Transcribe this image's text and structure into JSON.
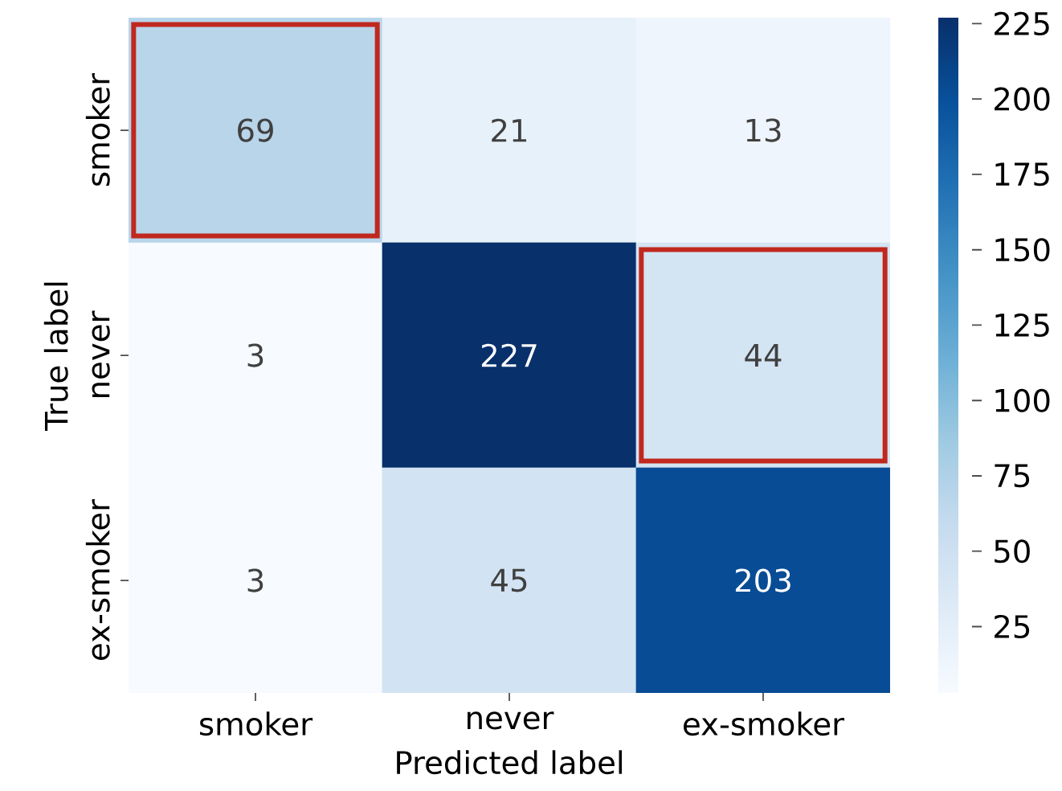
{
  "chart_data": {
    "type": "heatmap",
    "xlabel": "Predicted label",
    "ylabel": "True label",
    "categories": [
      "smoker",
      "never",
      "ex-smoker"
    ],
    "y_categories": [
      "smoker",
      "never",
      "ex-smoker"
    ],
    "cells": [
      [
        69,
        21,
        13
      ],
      [
        3,
        227,
        44
      ],
      [
        3,
        45,
        203
      ]
    ],
    "clim": [
      3,
      227
    ],
    "cticks": [
      25,
      50,
      75,
      100,
      125,
      150,
      175,
      200,
      225
    ],
    "data_labels": true
  }
}
